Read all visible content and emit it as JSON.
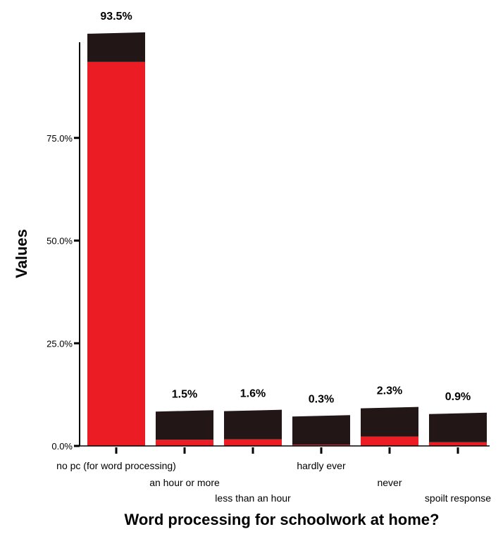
{
  "chart_data": {
    "type": "bar",
    "xlabel": "Word processing for schoolwork at home?",
    "ylabel": "Values",
    "ylim": [
      0,
      100
    ],
    "yticks": [
      0,
      25,
      50,
      75
    ],
    "ytick_labels": [
      "0.0%",
      "25.0%",
      "50.0%",
      "75.0%"
    ],
    "categories": [
      "no pc (for word processing)",
      "an hour or more",
      "less than an hour",
      "hardly ever",
      "never",
      "spoilt response"
    ],
    "values": [
      93.5,
      1.5,
      1.6,
      0.3,
      2.3,
      0.9
    ],
    "value_labels": [
      "93.5%",
      "1.5%",
      "1.6%",
      "0.3%",
      "2.3%",
      "0.9%"
    ],
    "bar_style": "3d",
    "colors": {
      "bar_front": "#ec1c24",
      "bar_top": "#231616",
      "axis": "#000000"
    }
  }
}
